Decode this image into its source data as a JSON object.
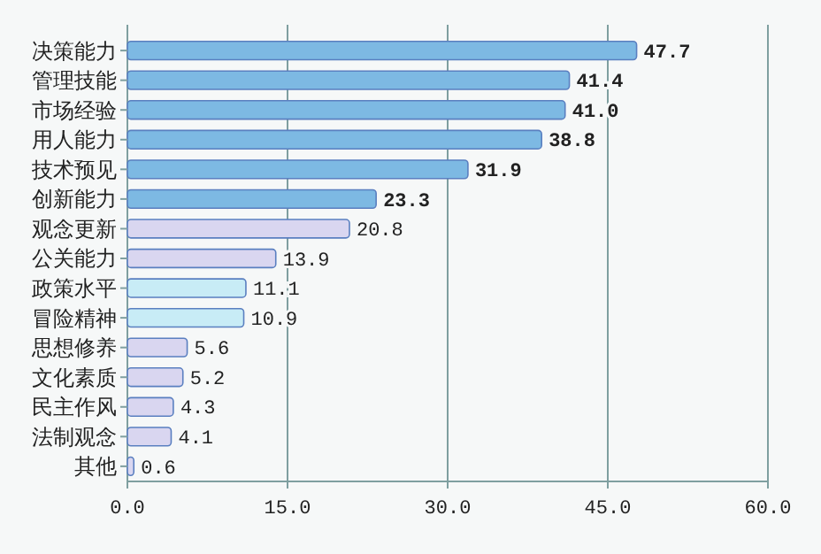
{
  "chart_data": {
    "type": "bar",
    "orientation": "horizontal",
    "categories": [
      "决策能力",
      "管理技能",
      "市场经验",
      "用人能力",
      "技术预见",
      "创新能力",
      "观念更新",
      "公关能力",
      "政策水平",
      "冒险精神",
      "思想修养",
      "文化素质",
      "民主作风",
      "法制观念",
      "其他"
    ],
    "values": [
      47.7,
      41.4,
      41.0,
      38.8,
      31.9,
      23.3,
      20.8,
      13.9,
      11.1,
      10.9,
      5.6,
      5.2,
      4.3,
      4.1,
      0.6
    ],
    "value_labels": [
      "47.7",
      "41.4",
      "41.0",
      "38.8",
      "31.9",
      "23.3",
      "20.8",
      "13.9",
      "11.1",
      "10.9",
      "5.6",
      "5.2",
      "4.3",
      "4.1",
      "0.6"
    ],
    "colors": [
      "#7db9e3",
      "#7db9e3",
      "#7db9e3",
      "#7db9e3",
      "#7db9e3",
      "#7db9e3",
      "#d9d6f0",
      "#d9d6f0",
      "#c8ecf6",
      "#c8ecf6",
      "#d9d6f0",
      "#d9d6f0",
      "#d9d6f0",
      "#d9d6f0",
      "#d9d6f0"
    ],
    "xlim": [
      0,
      60
    ],
    "xticks": [
      {
        "value": 0,
        "label": "0.0"
      },
      {
        "value": 15,
        "label": "15.0"
      },
      {
        "value": 30,
        "label": "30.0"
      },
      {
        "value": 45,
        "label": "45.0"
      },
      {
        "value": 60,
        "label": "60.0"
      }
    ],
    "grid": "x"
  }
}
